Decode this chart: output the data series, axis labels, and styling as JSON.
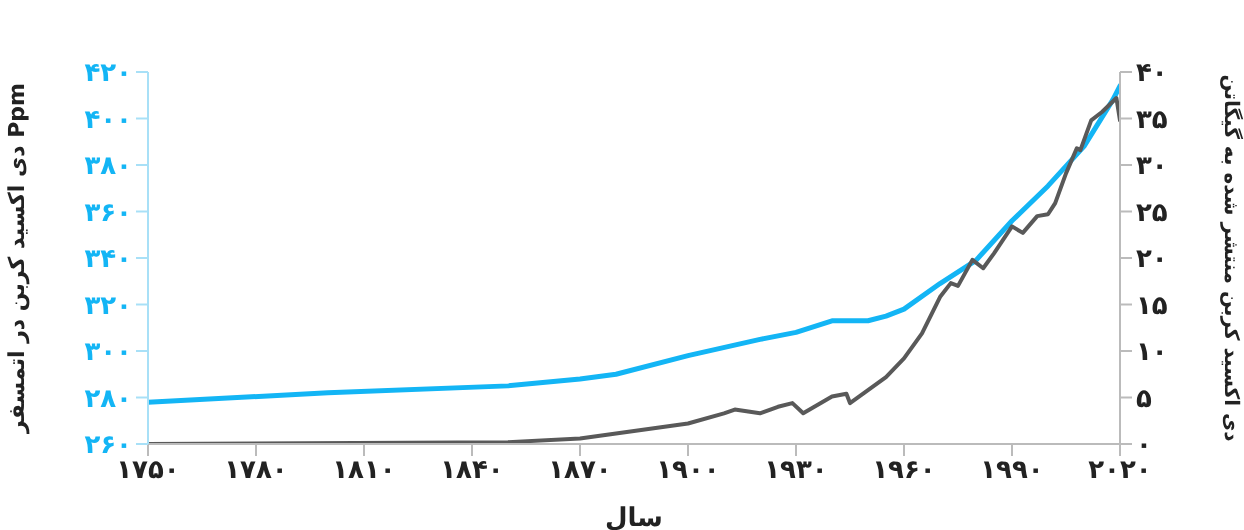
{
  "chart_data": {
    "type": "line",
    "xlabel": "سال",
    "ylabel": "دی اکسید کربن در اتمسفر Ppm",
    "y2label": "دی اکسید کربن منتشر شده به گیگاتن",
    "xlim": [
      1750,
      2020
    ],
    "xticks": [
      {
        "value": 1750,
        "label": "۱۷۵۰"
      },
      {
        "value": 1780,
        "label": "۱۷۸۰"
      },
      {
        "value": 1810,
        "label": "۱۸۱۰"
      },
      {
        "value": 1840,
        "label": "۱۸۴۰"
      },
      {
        "value": 1870,
        "label": "۱۸۷۰"
      },
      {
        "value": 1900,
        "label": "۱۹۰۰"
      },
      {
        "value": 1930,
        "label": "۱۹۳۰"
      },
      {
        "value": 1960,
        "label": "۱۹۶۰"
      },
      {
        "value": 1990,
        "label": "۱۹۹۰"
      },
      {
        "value": 2020,
        "label": "۲۰۲۰"
      }
    ],
    "ylim": [
      260,
      420
    ],
    "yticks": [
      {
        "value": 260,
        "label": "۲۶۰"
      },
      {
        "value": 280,
        "label": "۲۸۰"
      },
      {
        "value": 300,
        "label": "۳۰۰"
      },
      {
        "value": 320,
        "label": "۳۲۰"
      },
      {
        "value": 340,
        "label": "۳۴۰"
      },
      {
        "value": 360,
        "label": "۳۶۰"
      },
      {
        "value": 380,
        "label": "۳۸۰"
      },
      {
        "value": 400,
        "label": "۴۰۰"
      },
      {
        "value": 420,
        "label": "۴۲۰"
      }
    ],
    "y2lim": [
      0,
      40
    ],
    "y2ticks": [
      {
        "value": 0,
        "label": "۰"
      },
      {
        "value": 5,
        "label": "۵"
      },
      {
        "value": 10,
        "label": "۱۰"
      },
      {
        "value": 15,
        "label": "۱۵"
      },
      {
        "value": 20,
        "label": "۲۰"
      },
      {
        "value": 25,
        "label": "۲۵"
      },
      {
        "value": 30,
        "label": "۳۰"
      },
      {
        "value": 35,
        "label": "۳۵"
      },
      {
        "value": 40,
        "label": "۴۰"
      }
    ],
    "marker": "none",
    "line_style": "solid",
    "series": [
      {
        "color": "#13b5f5",
        "x": [
          1750,
          1800,
          1850,
          1870,
          1880,
          1900,
          1920,
          1930,
          1940,
          1950,
          1955,
          1960,
          1970,
          1980,
          1990,
          2000,
          2010,
          2018,
          2020
        ],
        "values": [
          278,
          282,
          285,
          288,
          290,
          298,
          305,
          308,
          313,
          313,
          315,
          318,
          329,
          339,
          356,
          371,
          388,
          408,
          414
        ]
      },
      {
        "color": "#595959",
        "axis": "y2",
        "x": [
          1750,
          1850,
          1870,
          1900,
          1910,
          1913,
          1920,
          1925,
          1929,
          1932,
          1940,
          1944,
          1945,
          1950,
          1955,
          1960,
          1965,
          1970,
          1973,
          1975,
          1979,
          1982,
          1985,
          1990,
          1993,
          1997,
          2000,
          2002,
          2005,
          2008,
          2009,
          2012,
          2015,
          2019,
          2020
        ],
        "values": [
          0,
          0.2,
          0.6,
          2.2,
          3.3,
          3.7,
          3.3,
          4.0,
          4.4,
          3.3,
          5.1,
          5.4,
          4.4,
          5.8,
          7.2,
          9.2,
          11.9,
          15.8,
          17.3,
          17,
          19.8,
          18.9,
          20.5,
          23.4,
          22.7,
          24.5,
          24.7,
          25.9,
          29.1,
          31.8,
          31.6,
          34.8,
          35.7,
          37.2,
          34.8
        ]
      }
    ]
  }
}
